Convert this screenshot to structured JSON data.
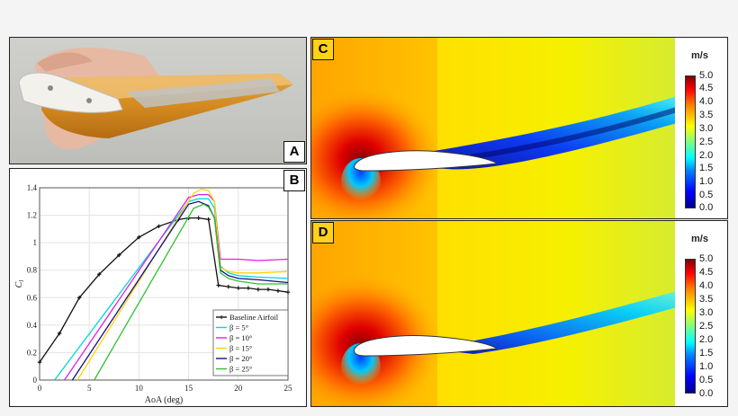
{
  "panels": {
    "a": {
      "label": "A"
    },
    "b": {
      "label": "B"
    },
    "c": {
      "label": "C"
    },
    "d": {
      "label": "D"
    }
  },
  "colorbar": {
    "unit": "m/s",
    "ticks": [
      "5.0",
      "4.5",
      "4.0",
      "3.5",
      "3.0",
      "2.5",
      "2.0",
      "1.5",
      "1.0",
      "0.5",
      "0.0"
    ]
  },
  "colors": {
    "baseline": "#111111",
    "b5": "#00d8d8",
    "b10": "#e020e0",
    "b15": "#ffd400",
    "b20": "#10108c",
    "b25": "#30c030"
  },
  "chart_data": {
    "type": "line",
    "xlabel": "AoA (deg)",
    "ylabel": "C_l",
    "xlim": [
      0,
      25
    ],
    "ylim": [
      0,
      1.4
    ],
    "xticks": [
      0,
      5,
      10,
      15,
      20,
      25
    ],
    "yticks": [
      0,
      0.2,
      0.4,
      0.6,
      0.8,
      1,
      1.2,
      1.4
    ],
    "grid": true,
    "legend_position": "bottom-right",
    "series": [
      {
        "key": "baseline",
        "name": "Baseline Airfoil",
        "markers": true,
        "x": [
          0,
          2,
          4,
          6,
          8,
          10,
          12,
          14,
          15,
          16,
          17,
          18,
          19,
          20,
          21,
          22,
          23,
          24,
          25
        ],
        "y": [
          0.13,
          0.34,
          0.6,
          0.77,
          0.91,
          1.04,
          1.12,
          1.17,
          1.18,
          1.18,
          1.17,
          0.69,
          0.68,
          0.67,
          0.67,
          0.66,
          0.66,
          0.65,
          0.64
        ]
      },
      {
        "key": "b5",
        "name": "β = 5°",
        "x": [
          1.5,
          15,
          16,
          17,
          17.6,
          18.2,
          19,
          20,
          22,
          25
        ],
        "y": [
          0,
          1.3,
          1.32,
          1.32,
          1.25,
          0.83,
          0.78,
          0.76,
          0.75,
          0.74
        ]
      },
      {
        "key": "b10",
        "name": "β = 10°",
        "x": [
          2.5,
          15,
          16,
          17,
          17.6,
          18.2,
          19,
          20,
          22,
          25
        ],
        "y": [
          0,
          1.33,
          1.35,
          1.35,
          1.3,
          0.88,
          0.88,
          0.88,
          0.87,
          0.88
        ]
      },
      {
        "key": "b15",
        "name": "β = 15°",
        "x": [
          3.8,
          15.5,
          16.3,
          17,
          17.6,
          18.2,
          19,
          20,
          22,
          25
        ],
        "y": [
          0,
          1.36,
          1.39,
          1.38,
          1.3,
          0.82,
          0.79,
          0.78,
          0.78,
          0.79
        ]
      },
      {
        "key": "b20",
        "name": "β = 20°",
        "x": [
          3.3,
          15,
          16,
          17,
          17.6,
          18.2,
          19,
          20,
          22,
          25
        ],
        "y": [
          0,
          1.28,
          1.3,
          1.27,
          1.18,
          0.8,
          0.76,
          0.74,
          0.73,
          0.71
        ]
      },
      {
        "key": "b25",
        "name": "β = 25°",
        "x": [
          5.5,
          15.5,
          16.5,
          17,
          17.6,
          18.2,
          19,
          20,
          22,
          25
        ],
        "y": [
          0,
          1.25,
          1.28,
          1.26,
          1.18,
          0.78,
          0.74,
          0.72,
          0.7,
          0.7
        ]
      }
    ]
  }
}
